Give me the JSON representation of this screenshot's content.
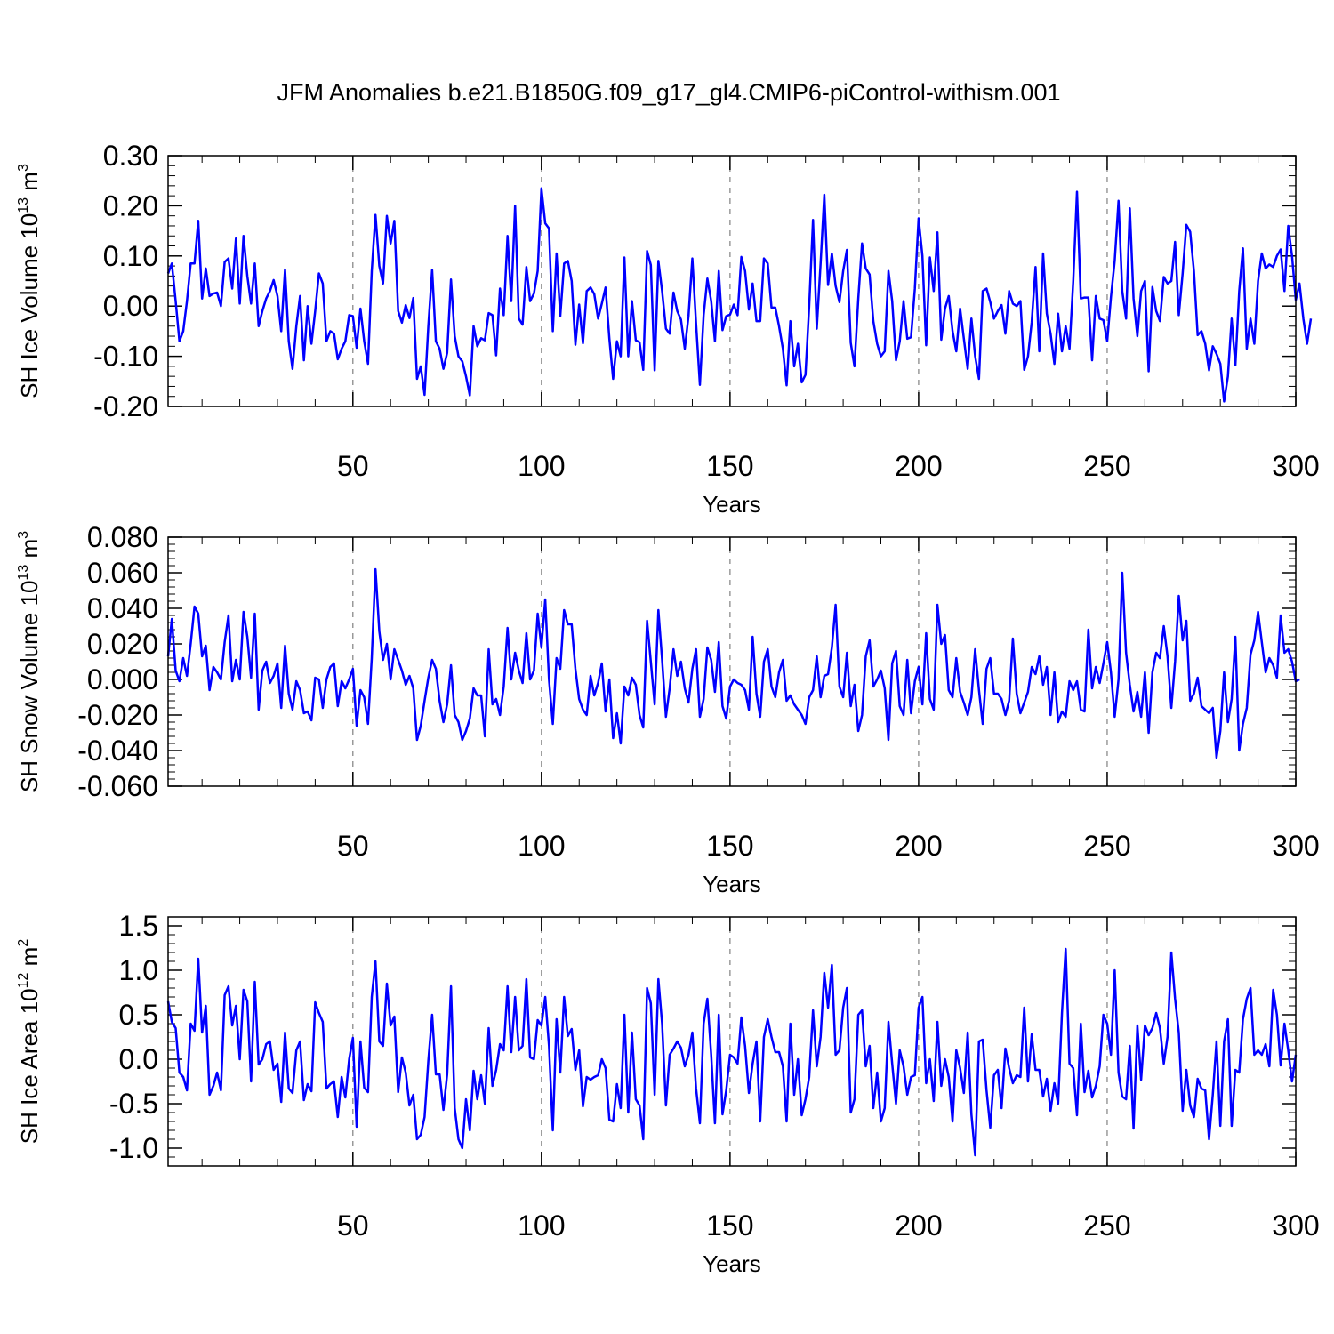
{
  "title": "JFM Anomalies b.e21.B1850G.f09_g17_gl4.CMIP6-piControl-withism.001",
  "colors": {
    "line": "#0000ff",
    "axis": "#000000",
    "grid": "#808080"
  },
  "chart_data": [
    {
      "type": "line",
      "ylabel": "SH Ice Volume 10",
      "ylabel_exp": "13",
      "ylabel_unit": " m",
      "ylabel_unit_exp": "3",
      "xlabel": "Years",
      "xlim": [
        1,
        300
      ],
      "ylim": [
        -0.2,
        0.3
      ],
      "yticks": [
        -0.2,
        -0.1,
        0.0,
        0.1,
        0.2,
        0.3
      ],
      "ytick_labels": [
        "-0.20",
        "-0.10",
        "0.00",
        "0.10",
        "0.20",
        "0.30"
      ],
      "xticks": [
        50,
        100,
        150,
        200,
        250,
        300
      ],
      "xtick_labels": [
        "50",
        "100",
        "150",
        "200",
        "250",
        "300"
      ],
      "grid": "vertical dashed at major x ticks",
      "x_start": 1,
      "series": [
        {
          "values": [
            0.065,
            0.085,
            0.01,
            -0.07,
            -0.05,
            0.01,
            0.085,
            0.085,
            0.17,
            0.015,
            0.075,
            0.02,
            0.025,
            0.027,
            0.0,
            0.088,
            0.095,
            0.035,
            0.135,
            0.005,
            0.14,
            0.06,
            0.005,
            0.085,
            -0.04,
            -0.01,
            0.015,
            0.03,
            0.052,
            0.02,
            -0.05,
            0.073,
            -0.07,
            -0.125,
            -0.04,
            0.02,
            -0.108,
            0.0,
            -0.075,
            -0.01,
            0.065,
            0.045,
            -0.07,
            -0.05,
            -0.055,
            -0.106,
            -0.085,
            -0.07,
            -0.018,
            -0.02,
            -0.083,
            -0.005,
            -0.07,
            -0.115,
            0.07,
            0.182,
            0.08,
            0.045,
            0.18,
            0.125,
            0.17,
            -0.01,
            -0.033,
            0.002,
            -0.024,
            0.016,
            -0.145,
            -0.12,
            -0.177,
            -0.04,
            0.072,
            -0.07,
            -0.085,
            -0.125,
            -0.093,
            0.053,
            -0.06,
            -0.1,
            -0.11,
            -0.14,
            -0.178,
            -0.04,
            -0.08,
            -0.064,
            -0.068,
            -0.014,
            -0.018,
            -0.098,
            0.035,
            -0.018,
            0.14,
            0.01,
            0.2,
            -0.025,
            -0.037,
            0.078,
            0.01,
            0.025,
            0.07,
            0.235,
            0.165,
            0.155,
            -0.05,
            0.105,
            -0.02,
            0.085,
            0.09,
            0.05,
            -0.077,
            0.003,
            -0.074,
            0.03,
            0.037,
            0.024,
            -0.025,
            0.005,
            0.037,
            -0.065,
            -0.145,
            -0.07,
            -0.1,
            0.097,
            -0.1,
            0.01,
            -0.068,
            -0.072,
            -0.127,
            0.11,
            0.082,
            -0.128,
            0.09,
            0.03,
            -0.045,
            -0.055,
            0.027,
            -0.01,
            -0.027,
            -0.085,
            -0.02,
            0.095,
            -0.035,
            -0.157,
            -0.018,
            0.055,
            0.01,
            -0.07,
            0.07,
            -0.048,
            -0.02,
            -0.017,
            0.003,
            -0.018,
            0.098,
            0.07,
            -0.007,
            0.045,
            -0.03,
            -0.03,
            0.095,
            0.085,
            -0.003,
            -0.003,
            -0.04,
            -0.085,
            -0.158,
            -0.03,
            -0.12,
            -0.075,
            -0.152,
            -0.137,
            0.0,
            0.172,
            -0.045,
            0.085,
            0.222,
            0.042,
            0.105,
            0.04,
            0.008,
            0.07,
            0.112,
            -0.073,
            -0.12,
            0.015,
            0.125,
            0.075,
            0.063,
            -0.03,
            -0.075,
            -0.1,
            -0.09,
            0.07,
            0.01,
            -0.108,
            -0.07,
            0.01,
            -0.065,
            -0.062,
            0.035,
            0.175,
            0.1,
            -0.078,
            0.097,
            0.03,
            0.147,
            -0.067,
            -0.005,
            0.02,
            -0.05,
            -0.09,
            -0.005,
            -0.065,
            -0.125,
            -0.025,
            -0.1,
            -0.145,
            0.03,
            0.035,
            0.008,
            -0.025,
            -0.01,
            0.002,
            -0.055,
            0.03,
            0.005,
            0.0,
            0.01,
            -0.127,
            -0.1,
            -0.032,
            0.078,
            -0.09,
            0.105,
            -0.015,
            -0.055,
            -0.115,
            -0.015,
            -0.09,
            -0.04,
            -0.085,
            0.05,
            0.228,
            0.015,
            0.017,
            0.017,
            -0.108,
            0.02,
            -0.025,
            -0.028,
            -0.07,
            0.018,
            0.09,
            0.21,
            0.03,
            -0.025,
            0.195,
            0.015,
            -0.06,
            0.03,
            0.05,
            -0.13,
            0.038,
            -0.01,
            -0.03,
            0.058,
            0.045,
            0.05,
            0.128,
            -0.018,
            0.065,
            0.162,
            0.148,
            0.07,
            -0.058,
            -0.05,
            -0.075,
            -0.128,
            -0.08,
            -0.095,
            -0.115,
            -0.19,
            -0.14,
            -0.025,
            -0.118,
            0.03,
            0.115,
            -0.085,
            -0.025,
            -0.075,
            0.05,
            0.105,
            0.075,
            0.083,
            0.078,
            0.1,
            0.113,
            0.03,
            0.16,
            0.1,
            0.012,
            0.045,
            -0.025,
            -0.075,
            -0.025
          ]
        }
      ]
    },
    {
      "type": "line",
      "ylabel": "SH Snow Volume 10",
      "ylabel_exp": "13",
      "ylabel_unit": " m",
      "ylabel_unit_exp": "3",
      "xlabel": "Years",
      "xlim": [
        1,
        300
      ],
      "ylim": [
        -0.06,
        0.08
      ],
      "yticks": [
        -0.06,
        -0.04,
        -0.02,
        0.0,
        0.02,
        0.04,
        0.06,
        0.08
      ],
      "ytick_labels": [
        "-0.060",
        "-0.040",
        "-0.020",
        "0.000",
        "0.020",
        "0.040",
        "0.060",
        "0.080"
      ],
      "xticks": [
        50,
        100,
        150,
        200,
        250,
        300
      ],
      "xtick_labels": [
        "50",
        "100",
        "150",
        "200",
        "250",
        "300"
      ],
      "grid": "vertical dashed at major x ticks",
      "x_start": 1,
      "series": [
        {
          "values": [
            0.013,
            0.034,
            0.005,
            -0.001,
            0.012,
            0.002,
            0.02,
            0.041,
            0.037,
            0.013,
            0.019,
            -0.006,
            0.007,
            0.004,
            0.0,
            0.021,
            0.036,
            -0.001,
            0.011,
            0.0,
            0.038,
            0.024,
            0.001,
            0.037,
            -0.017,
            0.005,
            0.01,
            -0.002,
            0.002,
            0.009,
            -0.016,
            0.019,
            -0.008,
            -0.017,
            -0.001,
            -0.006,
            -0.019,
            -0.018,
            -0.023,
            0.001,
            0.0,
            -0.016,
            0.0,
            0.007,
            0.009,
            -0.015,
            -0.001,
            -0.005,
            0.0,
            0.006,
            -0.026,
            -0.006,
            -0.01,
            -0.025,
            0.012,
            0.062,
            0.027,
            0.011,
            0.02,
            0.0,
            0.017,
            0.011,
            0.005,
            -0.003,
            0.002,
            -0.005,
            -0.034,
            -0.026,
            -0.012,
            0.001,
            0.011,
            0.006,
            -0.012,
            -0.024,
            -0.014,
            0.008,
            -0.02,
            -0.024,
            -0.034,
            -0.029,
            -0.022,
            -0.005,
            -0.009,
            -0.009,
            -0.032,
            0.017,
            -0.014,
            -0.011,
            -0.02,
            -0.004,
            0.029,
            0.0,
            0.015,
            0.005,
            -0.002,
            0.026,
            0.0,
            0.005,
            0.037,
            0.018,
            0.045,
            0.0,
            -0.025,
            0.012,
            0.006,
            0.039,
            0.031,
            0.031,
            0.006,
            -0.011,
            -0.017,
            -0.02,
            0.002,
            -0.009,
            -0.002,
            0.009,
            -0.018,
            0.0,
            -0.033,
            -0.019,
            -0.036,
            -0.004,
            -0.009,
            0.001,
            -0.003,
            -0.02,
            -0.027,
            0.033,
            0.01,
            -0.014,
            0.039,
            0.011,
            -0.021,
            -0.005,
            0.017,
            0.002,
            0.01,
            -0.005,
            -0.013,
            0.006,
            0.017,
            -0.021,
            -0.011,
            0.018,
            0.011,
            -0.007,
            0.021,
            -0.015,
            -0.022,
            -0.004,
            0.0,
            -0.002,
            -0.003,
            -0.006,
            -0.017,
            0.024,
            -0.008,
            -0.021,
            0.01,
            0.017,
            -0.004,
            -0.01,
            0.004,
            0.011,
            -0.012,
            -0.009,
            -0.014,
            -0.017,
            -0.02,
            -0.025,
            -0.01,
            -0.006,
            0.013,
            -0.01,
            0.002,
            0.003,
            0.018,
            0.042,
            -0.004,
            -0.01,
            0.015,
            -0.015,
            -0.003,
            -0.029,
            -0.02,
            0.013,
            0.022,
            -0.004,
            0.0,
            0.005,
            -0.005,
            -0.034,
            0.009,
            0.016,
            -0.015,
            -0.02,
            0.011,
            -0.019,
            -0.001,
            0.007,
            -0.014,
            0.026,
            -0.011,
            -0.017,
            0.042,
            0.02,
            0.025,
            -0.006,
            -0.01,
            0.012,
            -0.007,
            -0.013,
            -0.02,
            -0.01,
            0.017,
            -0.006,
            -0.025,
            0.006,
            0.012,
            -0.008,
            -0.008,
            -0.011,
            -0.02,
            -0.012,
            0.023,
            -0.008,
            -0.019,
            -0.013,
            -0.007,
            0.007,
            0.003,
            0.013,
            -0.003,
            0.007,
            -0.02,
            0.004,
            -0.024,
            -0.018,
            -0.021,
            -0.001,
            -0.006,
            -0.001,
            -0.017,
            -0.018,
            0.028,
            -0.005,
            0.007,
            -0.002,
            0.009,
            0.021,
            0.004,
            -0.021,
            0.0,
            0.06,
            0.015,
            -0.003,
            -0.018,
            -0.007,
            -0.021,
            0.004,
            -0.03,
            0.004,
            0.015,
            0.012,
            0.03,
            0.013,
            -0.016,
            0.01,
            0.047,
            0.022,
            0.033,
            -0.012,
            -0.008,
            0.001,
            -0.015,
            -0.017,
            -0.019,
            -0.016,
            -0.044,
            -0.029,
            0.004,
            -0.024,
            -0.011,
            0.024,
            -0.04,
            -0.025,
            -0.016,
            0.014,
            0.022,
            0.038,
            0.021,
            0.004,
            0.012,
            0.008,
            0.001,
            0.036,
            0.015,
            0.017,
            0.01,
            -0.001,
            0.0
          ]
        }
      ]
    },
    {
      "type": "line",
      "ylabel": "SH Ice Area 10",
      "ylabel_exp": "12",
      "ylabel_unit": " m",
      "ylabel_unit_exp": "2",
      "xlabel": "Years",
      "xlim": [
        1,
        300
      ],
      "ylim": [
        -1.2,
        1.6
      ],
      "yticks": [
        -1.0,
        -0.5,
        0.0,
        0.5,
        1.0,
        1.5
      ],
      "ytick_labels": [
        "-1.0",
        "-0.5",
        "0.0",
        "0.5",
        "1.0",
        "1.5"
      ],
      "xticks": [
        50,
        100,
        150,
        200,
        250,
        300
      ],
      "xtick_labels": [
        "50",
        "100",
        "150",
        "200",
        "250",
        "300"
      ],
      "grid": "vertical dashed at major x ticks",
      "x_start": 1,
      "series": [
        {
          "values": [
            0.65,
            0.42,
            0.35,
            -0.15,
            -0.2,
            -0.35,
            0.4,
            0.32,
            1.13,
            0.3,
            0.6,
            -0.4,
            -0.3,
            -0.15,
            -0.35,
            0.72,
            0.82,
            0.38,
            0.6,
            0.0,
            0.78,
            0.65,
            -0.25,
            0.87,
            -0.06,
            0.0,
            0.17,
            0.2,
            -0.12,
            -0.05,
            -0.48,
            0.3,
            -0.33,
            -0.38,
            0.1,
            0.2,
            -0.46,
            -0.28,
            -0.36,
            0.64,
            0.52,
            0.42,
            -0.33,
            -0.28,
            -0.25,
            -0.65,
            -0.2,
            -0.43,
            0.0,
            0.24,
            -0.76,
            0.2,
            -0.32,
            -0.37,
            0.7,
            1.1,
            0.2,
            0.15,
            0.85,
            0.38,
            0.48,
            -0.37,
            0.02,
            -0.15,
            -0.52,
            -0.4,
            -0.9,
            -0.85,
            -0.65,
            -0.02,
            0.5,
            -0.17,
            -0.17,
            -0.57,
            -0.17,
            0.82,
            -0.55,
            -0.9,
            -1.0,
            -0.45,
            -0.8,
            -0.13,
            -0.45,
            -0.18,
            -0.5,
            0.35,
            -0.3,
            -0.12,
            0.17,
            0.1,
            0.82,
            0.08,
            0.7,
            0.1,
            0.15,
            0.9,
            0.02,
            0.0,
            0.44,
            0.38,
            0.7,
            0.15,
            -0.8,
            0.45,
            -0.15,
            0.7,
            0.26,
            0.34,
            -0.12,
            0.1,
            -0.53,
            -0.2,
            -0.23,
            -0.2,
            -0.18,
            0.0,
            -0.1,
            -0.68,
            -0.7,
            -0.28,
            -0.55,
            0.5,
            -0.6,
            0.3,
            -0.45,
            -0.52,
            -0.9,
            0.8,
            0.63,
            -0.4,
            0.9,
            0.4,
            -0.52,
            0.05,
            0.12,
            0.2,
            0.13,
            -0.08,
            0.05,
            0.3,
            -0.33,
            -0.72,
            0.4,
            0.68,
            0.05,
            -0.72,
            0.5,
            -0.62,
            -0.35,
            0.05,
            0.02,
            -0.05,
            0.47,
            0.15,
            -0.38,
            -0.05,
            0.2,
            -0.7,
            0.25,
            0.45,
            0.25,
            0.08,
            0.08,
            -0.08,
            -0.7,
            0.4,
            -0.4,
            0.0,
            -0.63,
            -0.45,
            -0.2,
            0.55,
            -0.08,
            0.25,
            0.97,
            0.58,
            1.06,
            0.05,
            0.1,
            0.58,
            0.8,
            -0.6,
            -0.45,
            0.5,
            0.55,
            -0.08,
            0.15,
            -0.55,
            -0.15,
            -0.7,
            -0.55,
            0.42,
            -0.05,
            -0.5,
            0.1,
            -0.08,
            -0.4,
            -0.2,
            -0.18,
            0.58,
            0.7,
            -0.27,
            0.0,
            -0.47,
            0.42,
            -0.3,
            0.0,
            -0.2,
            -0.7,
            0.1,
            -0.1,
            -0.38,
            0.3,
            -0.62,
            -1.08,
            0.2,
            0.22,
            -0.35,
            -0.77,
            -0.18,
            -0.12,
            -0.55,
            0.12,
            -0.1,
            -0.27,
            -0.18,
            -0.2,
            0.58,
            -0.25,
            0.28,
            -0.12,
            -0.12,
            -0.42,
            -0.22,
            -0.58,
            -0.27,
            -0.5,
            0.52,
            1.24,
            -0.05,
            -0.1,
            -0.63,
            0.4,
            -0.37,
            -0.13,
            -0.43,
            -0.3,
            -0.08,
            0.5,
            0.4,
            0.05,
            1.0,
            -0.15,
            -0.42,
            -0.45,
            0.15,
            -0.78,
            0.38,
            -0.23,
            0.38,
            0.27,
            0.35,
            0.52,
            0.35,
            -0.05,
            0.25,
            1.2,
            0.68,
            0.3,
            -0.58,
            -0.12,
            -0.52,
            -0.65,
            -0.22,
            -0.33,
            -0.35,
            -0.9,
            -0.4,
            0.2,
            -0.75,
            0.2,
            0.45,
            -0.75,
            -0.12,
            -0.15,
            0.45,
            0.68,
            0.8,
            0.05,
            0.1,
            0.05,
            0.17,
            -0.08,
            0.78,
            0.5,
            -0.07,
            0.4,
            0.1,
            -0.25,
            0.05
          ]
        }
      ]
    }
  ]
}
